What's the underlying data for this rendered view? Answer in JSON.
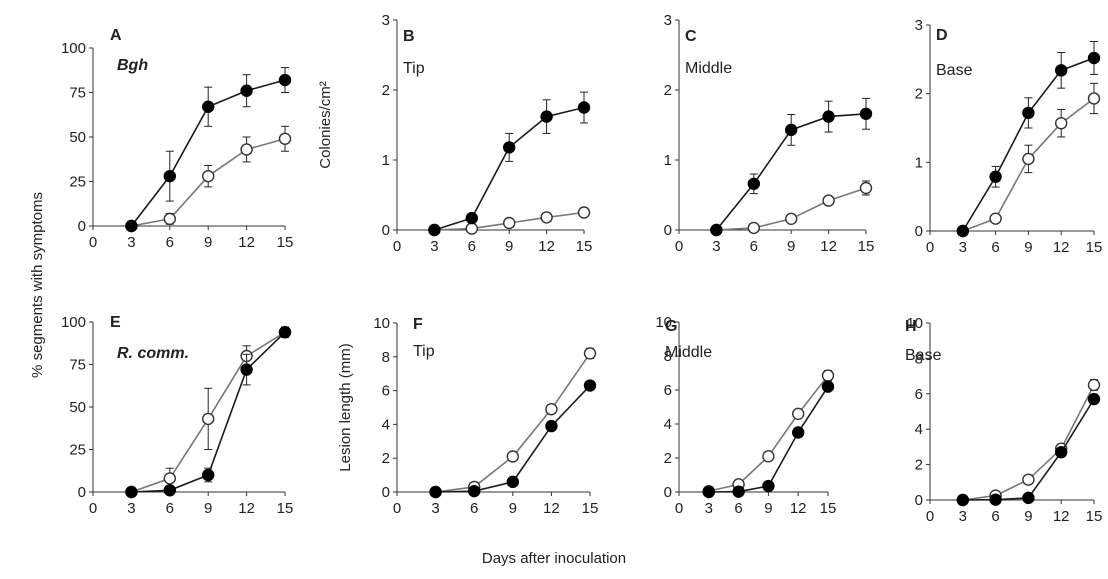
{
  "figure": {
    "common_xlabel": "Days after inoculation",
    "colors": {
      "axis": "#333333",
      "line_filled": "#1a1a1a",
      "line_open": "#777777",
      "marker_open_fill": "#ffffff",
      "marker_filled": "#000000"
    }
  },
  "chart_data": [
    {
      "type": "line",
      "panel": "A",
      "subtitle": "Bgh",
      "subtitle_style": "bold-italic",
      "ylabel": "% segments  with symptoms",
      "x": [
        3,
        6,
        9,
        12,
        15
      ],
      "xlim": [
        0,
        15
      ],
      "xticks": [
        "0",
        "3",
        "6",
        "9",
        "12",
        "15"
      ],
      "ylim": [
        0,
        100
      ],
      "yticks": [
        "0",
        "25",
        "50",
        "75",
        "100"
      ],
      "series": [
        {
          "marker": "filled",
          "values": [
            0,
            28,
            67,
            76,
            82
          ],
          "err": [
            0,
            14,
            11,
            9,
            7
          ]
        },
        {
          "marker": "open",
          "values": [
            0,
            4,
            28,
            43,
            49
          ],
          "err": [
            0,
            3,
            6,
            7,
            7
          ]
        }
      ]
    },
    {
      "type": "line",
      "panel": "B",
      "subtitle": "Tip",
      "subtitle_style": "normal",
      "ylabel": "Colonies/cm²",
      "x": [
        3,
        6,
        9,
        12,
        15
      ],
      "xlim": [
        0,
        15
      ],
      "xticks": [
        "0",
        "3",
        "6",
        "9",
        "12",
        "15"
      ],
      "ylim": [
        0,
        3
      ],
      "yticks": [
        "0",
        "1",
        "2",
        "3"
      ],
      "series": [
        {
          "marker": "filled",
          "values": [
            0,
            0.17,
            1.18,
            1.62,
            1.75
          ],
          "err": [
            0,
            0.03,
            0.2,
            0.24,
            0.22
          ]
        },
        {
          "marker": "open",
          "values": [
            0,
            0.02,
            0.1,
            0.18,
            0.25
          ],
          "err": [
            0,
            0,
            0,
            0,
            0
          ]
        }
      ]
    },
    {
      "type": "line",
      "panel": "C",
      "subtitle": "Middle",
      "subtitle_style": "normal",
      "ylabel": "",
      "x": [
        3,
        6,
        9,
        12,
        15
      ],
      "xlim": [
        0,
        15
      ],
      "xticks": [
        "0",
        "3",
        "6",
        "9",
        "12",
        "15"
      ],
      "ylim": [
        0,
        3
      ],
      "yticks": [
        "0",
        "1",
        "2",
        "3"
      ],
      "series": [
        {
          "marker": "filled",
          "values": [
            0,
            0.66,
            1.43,
            1.62,
            1.66
          ],
          "err": [
            0,
            0.14,
            0.22,
            0.22,
            0.22
          ]
        },
        {
          "marker": "open",
          "values": [
            0,
            0.03,
            0.16,
            0.42,
            0.6
          ],
          "err": [
            0,
            0,
            0.04,
            0.06,
            0.1
          ]
        }
      ]
    },
    {
      "type": "line",
      "panel": "D",
      "subtitle": "Base",
      "subtitle_style": "normal",
      "ylabel": "",
      "x": [
        3,
        6,
        9,
        12,
        15
      ],
      "xlim": [
        0,
        15
      ],
      "xticks": [
        "0",
        "3",
        "6",
        "9",
        "12",
        "15"
      ],
      "ylim": [
        0,
        3
      ],
      "yticks": [
        "0",
        "1",
        "2",
        "3"
      ],
      "series": [
        {
          "marker": "filled",
          "values": [
            0,
            0.79,
            1.72,
            2.34,
            2.52
          ],
          "err": [
            0,
            0.15,
            0.22,
            0.26,
            0.24
          ]
        },
        {
          "marker": "open",
          "values": [
            0,
            0.18,
            1.05,
            1.57,
            1.93
          ],
          "err": [
            0,
            0.02,
            0.2,
            0.2,
            0.22
          ]
        }
      ]
    },
    {
      "type": "line",
      "panel": "E",
      "subtitle": "R. comm.",
      "subtitle_style": "bold-italic",
      "ylabel": "% segments  with symptoms",
      "x": [
        3,
        6,
        9,
        12,
        15
      ],
      "xlim": [
        0,
        15
      ],
      "xticks": [
        "0",
        "3",
        "6",
        "9",
        "12",
        "15"
      ],
      "ylim": [
        0,
        100
      ],
      "yticks": [
        "0",
        "25",
        "50",
        "75",
        "100"
      ],
      "series": [
        {
          "marker": "filled",
          "values": [
            0,
            1,
            10,
            72,
            94
          ],
          "err": [
            0,
            0,
            4,
            9,
            3
          ]
        },
        {
          "marker": "open",
          "values": [
            0,
            8,
            43,
            80,
            94
          ],
          "err": [
            0,
            6,
            18,
            6,
            3
          ]
        }
      ]
    },
    {
      "type": "line",
      "panel": "F",
      "subtitle": "Tip",
      "subtitle_style": "normal",
      "ylabel": "Lesion length (mm)",
      "x": [
        3,
        6,
        9,
        12,
        15
      ],
      "xlim": [
        0,
        15
      ],
      "xticks": [
        "0",
        "3",
        "6",
        "9",
        "12",
        "15"
      ],
      "ylim": [
        0,
        10
      ],
      "yticks": [
        "0",
        "2",
        "4",
        "6",
        "8",
        "10"
      ],
      "series": [
        {
          "marker": "filled",
          "values": [
            0,
            0.05,
            0.6,
            3.9,
            6.3
          ],
          "err": [
            0,
            0,
            0,
            0,
            0
          ]
        },
        {
          "marker": "open",
          "values": [
            0,
            0.3,
            2.1,
            4.9,
            8.2
          ],
          "err": [
            0,
            0,
            0,
            0,
            0.3
          ]
        }
      ]
    },
    {
      "type": "line",
      "panel": "G",
      "subtitle": "Middle",
      "subtitle_style": "normal",
      "ylabel": "",
      "x": [
        3,
        6,
        9,
        12,
        15
      ],
      "xlim": [
        0,
        15
      ],
      "xticks": [
        "0",
        "3",
        "6",
        "9",
        "12",
        "15"
      ],
      "ylim": [
        0,
        10
      ],
      "yticks": [
        "0",
        "2",
        "4",
        "6",
        "8",
        "10"
      ],
      "series": [
        {
          "marker": "filled",
          "values": [
            0,
            0.02,
            0.35,
            3.5,
            6.2
          ],
          "err": [
            0,
            0,
            0,
            0,
            0
          ]
        },
        {
          "marker": "open",
          "values": [
            0.05,
            0.45,
            2.1,
            4.6,
            6.85
          ],
          "err": [
            0,
            0,
            0,
            0,
            0.3
          ]
        }
      ]
    },
    {
      "type": "line",
      "panel": "H",
      "subtitle": "Base",
      "subtitle_style": "normal",
      "ylabel": "",
      "x": [
        3,
        6,
        9,
        12,
        15
      ],
      "xlim": [
        0,
        15
      ],
      "xticks": [
        "0",
        "3",
        "6",
        "9",
        "12",
        "15"
      ],
      "ylim": [
        0,
        10
      ],
      "yticks": [
        "0",
        "2",
        "4",
        "6",
        "8",
        "10"
      ],
      "series": [
        {
          "marker": "filled",
          "values": [
            0,
            0.02,
            0.12,
            2.7,
            5.7
          ],
          "err": [
            0,
            0,
            0,
            0,
            0
          ]
        },
        {
          "marker": "open",
          "values": [
            0,
            0.25,
            1.15,
            2.9,
            6.5
          ],
          "err": [
            0,
            0,
            0,
            0,
            0.3
          ]
        }
      ]
    }
  ]
}
